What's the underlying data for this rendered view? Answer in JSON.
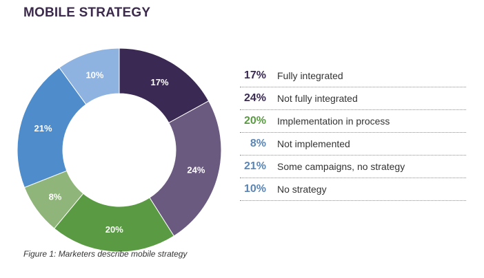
{
  "title": "MOBILE STRATEGY",
  "caption": "Figure 1: Marketers describe mobile strategy",
  "chart_data": {
    "type": "pie",
    "title": "MOBILE STRATEGY",
    "categories": [
      "Fully integrated",
      "Not fully integrated",
      "Implementation in process",
      "Not implemented",
      "Some campaigns, no strategy",
      "No strategy"
    ],
    "values": [
      17,
      24,
      20,
      8,
      21,
      10
    ],
    "value_labels": [
      "17%",
      "24%",
      "20%",
      "8%",
      "21%",
      "10%"
    ],
    "colors": [
      "#3a2a53",
      "#6b5a80",
      "#5a9a43",
      "#8fb57a",
      "#4e8ccb",
      "#8fb3e0"
    ],
    "legend_text_colors": [
      "#3a2a53",
      "#3a2a53",
      "#5a9a43",
      "#5a85b5",
      "#5a85b5",
      "#5a85b5"
    ],
    "legend_position": "right"
  }
}
